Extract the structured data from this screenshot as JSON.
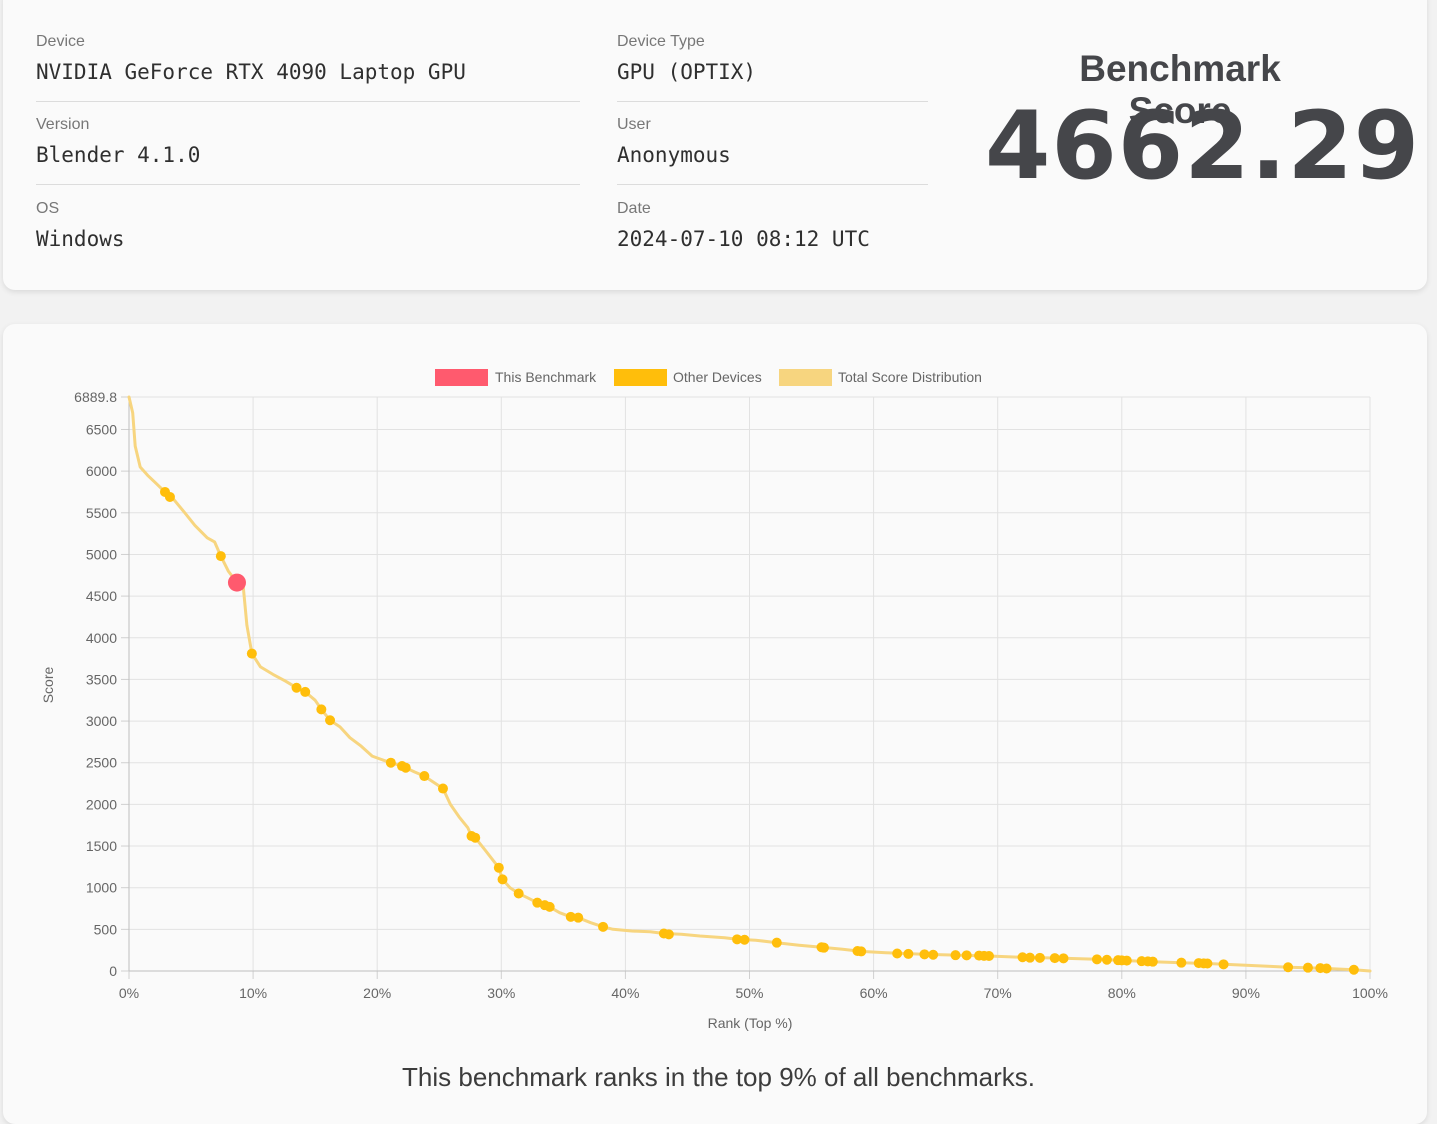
{
  "info": {
    "device_label": "Device",
    "device_value": "NVIDIA GeForce RTX 4090 Laptop GPU",
    "device_type_label": "Device Type",
    "device_type_value": "GPU (OPTIX)",
    "version_label": "Version",
    "version_value": "Blender 4.1.0",
    "user_label": "User",
    "user_value": "Anonymous",
    "os_label": "OS",
    "os_value": "Windows",
    "date_label": "Date",
    "date_value": "2024-07-10 08:12 UTC"
  },
  "score": {
    "title": "Benchmark Score",
    "value": "4662.29"
  },
  "rank_text": "This benchmark ranks in the top 9% of all benchmarks.",
  "colors": {
    "this_benchmark": "#ff5a6e",
    "other_devices": "#ffbe0b",
    "distribution": "#f7d57f"
  },
  "chart_data": {
    "type": "scatter",
    "xlabel": "Rank (Top %)",
    "ylabel": "Score",
    "xlim": [
      0,
      100
    ],
    "ylim": [
      0,
      6889.8
    ],
    "x_ticks": [
      "0%",
      "10%",
      "20%",
      "30%",
      "40%",
      "50%",
      "60%",
      "70%",
      "80%",
      "90%",
      "100%"
    ],
    "y_ticks": [
      "0",
      "500",
      "1000",
      "1500",
      "2000",
      "2500",
      "3000",
      "3500",
      "4000",
      "4500",
      "5000",
      "5500",
      "6000",
      "6500",
      "6889.8"
    ],
    "grid": true,
    "legend_position": "top-center",
    "legend": [
      "This Benchmark",
      "Other Devices",
      "Total Score Distribution"
    ],
    "series": [
      {
        "name": "This Benchmark",
        "points": [
          [
            8.7,
            4662.29
          ]
        ]
      },
      {
        "name": "Other Devices",
        "points": [
          [
            2.9,
            5750
          ],
          [
            3.3,
            5690
          ],
          [
            7.4,
            4980
          ],
          [
            9.9,
            3810
          ],
          [
            13.5,
            3400
          ],
          [
            14.2,
            3350
          ],
          [
            15.5,
            3140
          ],
          [
            16.2,
            3010
          ],
          [
            21.1,
            2500
          ],
          [
            22.0,
            2460
          ],
          [
            22.3,
            2440
          ],
          [
            23.8,
            2340
          ],
          [
            25.3,
            2190
          ],
          [
            27.6,
            1620
          ],
          [
            27.9,
            1600
          ],
          [
            29.8,
            1240
          ],
          [
            30.1,
            1100
          ],
          [
            31.4,
            930
          ],
          [
            32.9,
            820
          ],
          [
            33.5,
            790
          ],
          [
            33.9,
            770
          ],
          [
            35.6,
            650
          ],
          [
            36.2,
            640
          ],
          [
            38.2,
            530
          ],
          [
            43.1,
            450
          ],
          [
            43.5,
            440
          ],
          [
            49.0,
            380
          ],
          [
            49.6,
            375
          ],
          [
            52.2,
            340
          ],
          [
            55.8,
            285
          ],
          [
            56.0,
            280
          ],
          [
            58.7,
            240
          ],
          [
            59.0,
            235
          ],
          [
            61.9,
            210
          ],
          [
            62.8,
            205
          ],
          [
            64.1,
            200
          ],
          [
            64.8,
            195
          ],
          [
            66.6,
            190
          ],
          [
            67.5,
            188
          ],
          [
            68.5,
            185
          ],
          [
            68.9,
            182
          ],
          [
            69.3,
            180
          ],
          [
            72.0,
            165
          ],
          [
            72.6,
            160
          ],
          [
            73.4,
            158
          ],
          [
            74.6,
            155
          ],
          [
            75.3,
            152
          ],
          [
            78.0,
            140
          ],
          [
            78.8,
            135
          ],
          [
            79.7,
            130
          ],
          [
            80.0,
            128
          ],
          [
            80.4,
            125
          ],
          [
            81.6,
            118
          ],
          [
            82.1,
            115
          ],
          [
            82.5,
            112
          ],
          [
            84.8,
            100
          ],
          [
            86.2,
            95
          ],
          [
            86.6,
            92
          ],
          [
            86.9,
            90
          ],
          [
            88.2,
            80
          ],
          [
            93.4,
            45
          ],
          [
            95.0,
            40
          ],
          [
            96.0,
            35
          ],
          [
            96.5,
            30
          ],
          [
            98.7,
            15
          ]
        ]
      },
      {
        "name": "Total Score Distribution",
        "points": [
          [
            0,
            6889.8
          ],
          [
            0.3,
            6700
          ],
          [
            0.5,
            6300
          ],
          [
            0.9,
            6050
          ],
          [
            1.5,
            5950
          ],
          [
            2.2,
            5850
          ],
          [
            2.9,
            5750
          ],
          [
            3.5,
            5680
          ],
          [
            4.5,
            5500
          ],
          [
            5.3,
            5350
          ],
          [
            6.3,
            5200
          ],
          [
            6.9,
            5150
          ],
          [
            7.4,
            4980
          ],
          [
            8.0,
            4800
          ],
          [
            8.7,
            4662
          ],
          [
            9.2,
            4620
          ],
          [
            9.5,
            4150
          ],
          [
            9.9,
            3810
          ],
          [
            10.6,
            3650
          ],
          [
            11.6,
            3560
          ],
          [
            12.6,
            3480
          ],
          [
            13.5,
            3400
          ],
          [
            14.2,
            3350
          ],
          [
            15.0,
            3250
          ],
          [
            15.5,
            3140
          ],
          [
            16.2,
            3010
          ],
          [
            17.0,
            2930
          ],
          [
            17.8,
            2800
          ],
          [
            18.7,
            2700
          ],
          [
            19.6,
            2580
          ],
          [
            20.5,
            2530
          ],
          [
            21.1,
            2500
          ],
          [
            22.0,
            2460
          ],
          [
            22.3,
            2440
          ],
          [
            23.0,
            2390
          ],
          [
            23.8,
            2340
          ],
          [
            24.6,
            2260
          ],
          [
            25.3,
            2190
          ],
          [
            25.9,
            2000
          ],
          [
            26.6,
            1850
          ],
          [
            27.3,
            1720
          ],
          [
            27.6,
            1620
          ],
          [
            27.9,
            1600
          ],
          [
            28.7,
            1450
          ],
          [
            29.8,
            1240
          ],
          [
            30.1,
            1100
          ],
          [
            30.7,
            1000
          ],
          [
            31.4,
            930
          ],
          [
            32.1,
            880
          ],
          [
            32.9,
            820
          ],
          [
            33.9,
            770
          ],
          [
            34.7,
            700
          ],
          [
            35.6,
            650
          ],
          [
            36.2,
            640
          ],
          [
            37.2,
            580
          ],
          [
            38.2,
            530
          ],
          [
            39.0,
            500
          ],
          [
            40.5,
            480
          ],
          [
            42.0,
            470
          ],
          [
            43.1,
            450
          ],
          [
            44.5,
            440
          ],
          [
            46.0,
            420
          ],
          [
            48.0,
            400
          ],
          [
            49.0,
            380
          ],
          [
            50.5,
            370
          ],
          [
            52.2,
            340
          ],
          [
            54.0,
            310
          ],
          [
            55.8,
            285
          ],
          [
            57.5,
            260
          ],
          [
            59.0,
            235
          ],
          [
            61.0,
            220
          ],
          [
            64.0,
            200
          ],
          [
            67.0,
            190
          ],
          [
            69.3,
            180
          ],
          [
            72.0,
            165
          ],
          [
            75.3,
            152
          ],
          [
            78.0,
            140
          ],
          [
            80.4,
            125
          ],
          [
            82.5,
            112
          ],
          [
            84.8,
            100
          ],
          [
            86.9,
            90
          ],
          [
            88.2,
            80
          ],
          [
            90.0,
            70
          ],
          [
            92.0,
            55
          ],
          [
            93.4,
            45
          ],
          [
            95.0,
            40
          ],
          [
            96.5,
            30
          ],
          [
            98.7,
            15
          ],
          [
            100,
            0
          ]
        ]
      }
    ]
  }
}
